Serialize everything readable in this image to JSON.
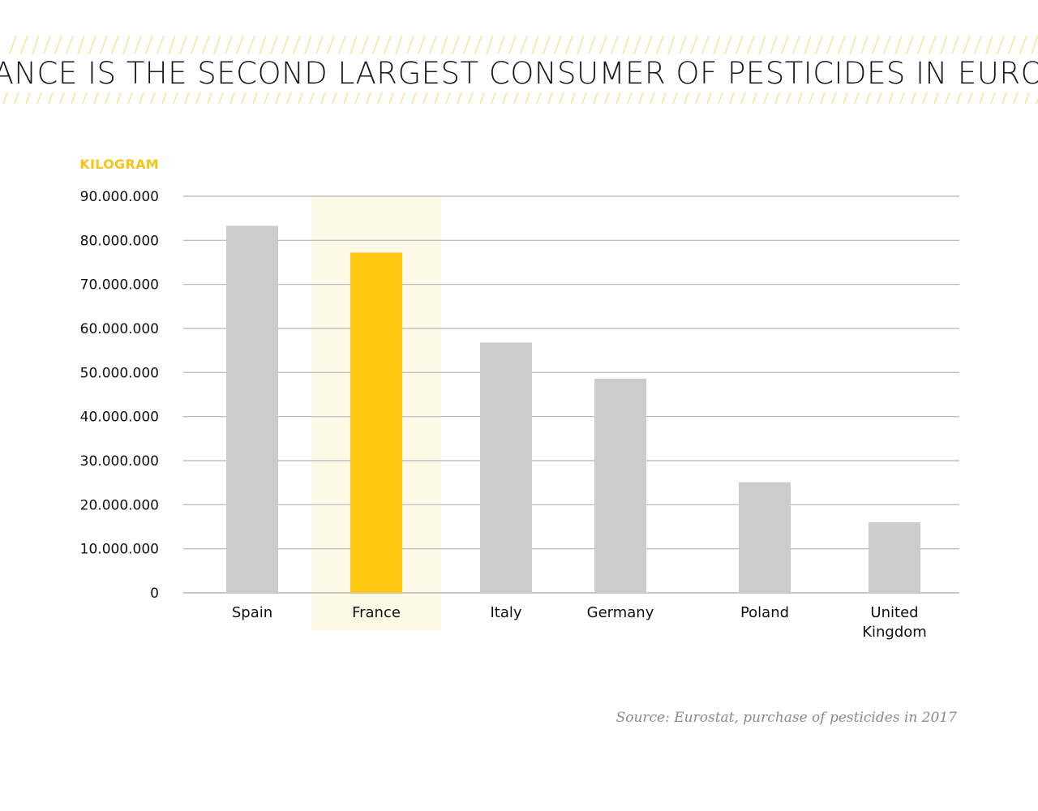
{
  "title": "FRANCE IS THE SECOND LARGEST CONSUMER OF PESTICIDES IN EUROPE",
  "source": "Source: Eurostat, purchase of pesticides in 2017",
  "colors": {
    "accent": "#FEC813",
    "highlight_band": "#FEF8E6",
    "bar": "#CCCCCC",
    "grid": "#B5B5B5",
    "stripe": "#F5E28C",
    "ylabel": "#F5C518"
  },
  "chart_data": {
    "type": "bar",
    "ylabel": "KILOGRAM",
    "xlabel": "",
    "categories": [
      "Spain",
      "France",
      "Italy",
      "Germany",
      "Poland",
      "United Kingdom"
    ],
    "category_lines": [
      [
        "Spain"
      ],
      [
        "France"
      ],
      [
        "Italy"
      ],
      [
        "Germany"
      ],
      [
        "Poland"
      ],
      [
        "United",
        "Kingdom"
      ]
    ],
    "values": [
      83300000,
      77200000,
      56800000,
      48600000,
      25100000,
      16000000
    ],
    "highlight": "France",
    "ylim": [
      0,
      90000000
    ],
    "yticks": [
      0,
      10000000,
      20000000,
      30000000,
      40000000,
      50000000,
      60000000,
      70000000,
      80000000,
      90000000
    ],
    "ytick_labels": [
      "0",
      "10.000.000",
      "20.000.000",
      "30.000.000",
      "40.000.000",
      "50.000.000",
      "60.000.000",
      "70.000.000",
      "80.000.000",
      "90.000.000"
    ],
    "grid": true,
    "legend": "none"
  }
}
